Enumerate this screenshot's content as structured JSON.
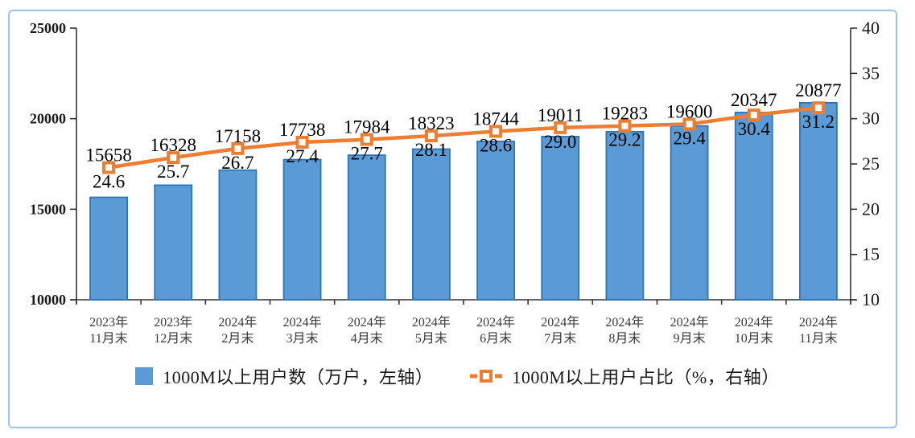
{
  "chart_data": {
    "type": "combo",
    "categories": [
      [
        "2023年",
        "11月末"
      ],
      [
        "2023年",
        "12月末"
      ],
      [
        "2024年",
        "2月末"
      ],
      [
        "2024年",
        "3月末"
      ],
      [
        "2024年",
        "4月末"
      ],
      [
        "2024年",
        "5月末"
      ],
      [
        "2024年",
        "6月末"
      ],
      [
        "2024年",
        "7月末"
      ],
      [
        "2024年",
        "8月末"
      ],
      [
        "2024年",
        "9月末"
      ],
      [
        "2024年",
        "10月末"
      ],
      [
        "2024年",
        "11月末"
      ]
    ],
    "series": [
      {
        "name": "1000M以上用户数（万户，左轴）",
        "type": "bar",
        "axis": "left",
        "values": [
          15658,
          16328,
          17158,
          17738,
          17984,
          18323,
          18744,
          19011,
          19283,
          19600,
          20347,
          20877
        ],
        "fill": "#5B9BD5",
        "stroke": "#2E75B6"
      },
      {
        "name": "1000M以上用户占比（%，右轴）",
        "type": "line",
        "axis": "right",
        "values": [
          24.6,
          25.7,
          26.7,
          27.4,
          27.7,
          28.1,
          28.6,
          29.0,
          29.2,
          29.4,
          30.4,
          31.2
        ],
        "color": "#ED7D31",
        "marker": "square-hollow"
      }
    ],
    "left_axis": {
      "min": 10000,
      "max": 25000,
      "step": 5000
    },
    "right_axis": {
      "min": 10,
      "max": 40,
      "step": 5
    },
    "grid": false,
    "legend_position": "bottom",
    "title": ""
  },
  "colors": {
    "bar_fill": "#5B9BD5",
    "bar_stroke": "#2E75B6",
    "line": "#ED7D31",
    "frame_border": "#9DC3E6",
    "axis": "#333333",
    "tick_text": "#1a1a1a",
    "category_text": "#3b3b3b",
    "label_text": "#000000"
  }
}
